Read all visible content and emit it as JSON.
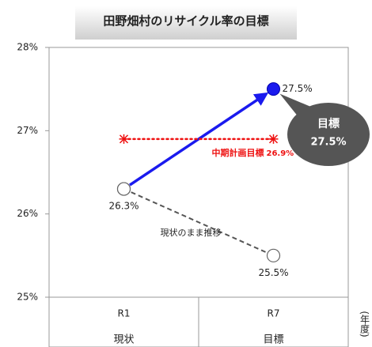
{
  "chart_data": {
    "type": "line",
    "title": "田野畑村のリサイクル率の目標",
    "categories": [
      "R1",
      "R7"
    ],
    "category_labels": [
      "現状",
      "目標"
    ],
    "x_axis_label": "(年度)",
    "ylim": [
      25,
      28
    ],
    "yticks": [
      {
        "value": 25,
        "label": "25%"
      },
      {
        "value": 26,
        "label": "26%"
      },
      {
        "value": 27,
        "label": "27%"
      },
      {
        "value": 28,
        "label": "28%"
      }
    ],
    "grid": false,
    "series": [
      {
        "name": "現状のまま推移",
        "color": "#555555",
        "style": "dashed",
        "values": [
          26.3,
          25.5
        ],
        "value_labels": [
          "26.3%",
          "25.5%"
        ]
      },
      {
        "color": "#1a1aee",
        "style": "arrow",
        "values": [
          26.3,
          27.5
        ],
        "value_labels": [
          null,
          "27.5%"
        ]
      },
      {
        "name": "中期計画目標",
        "color": "#ee1111",
        "style": "dotted",
        "values": [
          26.9,
          26.9
        ],
        "value_labels": [
          null,
          "26.9%"
        ]
      }
    ],
    "callout": {
      "title": "目標",
      "text": "27.5%"
    }
  }
}
